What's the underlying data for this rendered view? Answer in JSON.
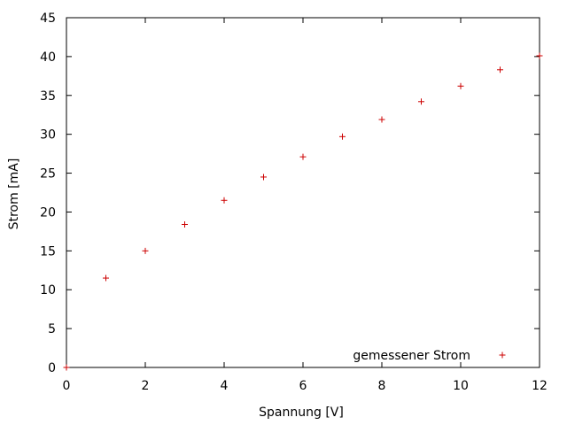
{
  "chart_data": {
    "type": "scatter",
    "title": "",
    "xlabel": "Spannung [V]",
    "ylabel": "Strom [mA]",
    "xlim": [
      0,
      12
    ],
    "ylim": [
      0,
      45
    ],
    "xticks": [
      "0",
      "2",
      "4",
      "6",
      "8",
      "10",
      "12"
    ],
    "yticks": [
      "0",
      "5",
      "10",
      "15",
      "20",
      "25",
      "30",
      "35",
      "40",
      "45"
    ],
    "grid": false,
    "legend_position": "bottom-right",
    "series": [
      {
        "name": "gemessener Strom",
        "marker": "plus",
        "color": "#cc0000",
        "x": [
          0,
          1,
          2,
          3,
          4,
          5,
          6,
          7,
          8,
          9,
          10,
          11,
          12
        ],
        "y": [
          0,
          11.5,
          15.0,
          18.4,
          21.5,
          24.5,
          27.1,
          29.7,
          31.9,
          34.2,
          36.2,
          38.3,
          40.1
        ]
      }
    ]
  }
}
